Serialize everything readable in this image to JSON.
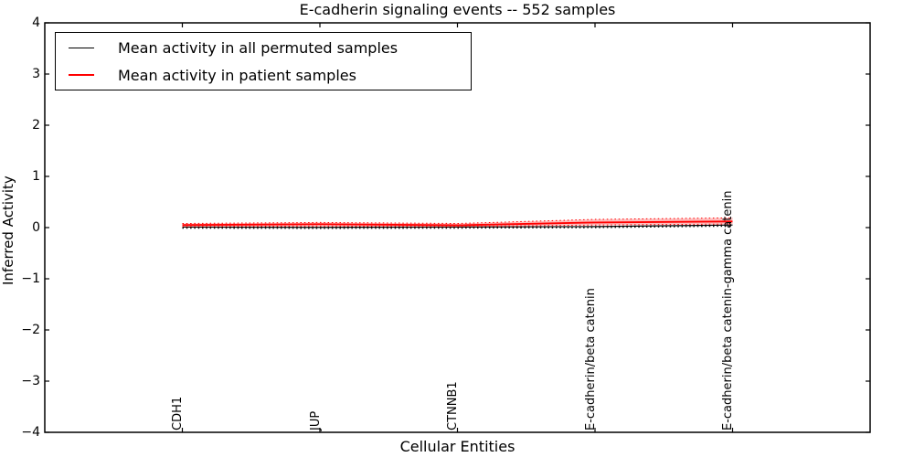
{
  "title": "E-cadherin signaling events -- 552 samples",
  "legend": {
    "items": [
      {
        "label": "Mean activity in all permuted samples",
        "color": "#000000",
        "style": "solid"
      },
      {
        "label": "Mean activity in patient samples",
        "color": "#ff0000",
        "style": "solid"
      }
    ],
    "position": "upper left"
  },
  "axes": {
    "ylabel": "Inferred Activity",
    "xlabel": "Cellular Entities",
    "ytick_labels": [
      "4",
      "3",
      "2",
      "1",
      "0",
      "−1",
      "−2",
      "−3",
      "−4"
    ]
  },
  "chart_data": {
    "type": "line",
    "title": "E-cadherin signaling events -- 552 samples",
    "xlabel": "Cellular Entities",
    "ylabel": "Inferred Activity",
    "ylim": [
      -4,
      4
    ],
    "yticks": [
      4,
      3,
      2,
      1,
      0,
      -1,
      -2,
      -3,
      -4
    ],
    "grid": false,
    "legend_position": "upper left",
    "categories": [
      "CDH1",
      "JUP",
      "CTNNB1",
      "E-cadherin/beta catenin",
      "E-cadherin/beta catenin-gamma catenin"
    ],
    "series": [
      {
        "key": "permuted_mean",
        "name": "Mean activity in all permuted samples",
        "color": "#000000",
        "style": "solid",
        "width": 1.2,
        "values": [
          0.01,
          0.005,
          0.01,
          0.02,
          0.05
        ]
      },
      {
        "key": "permuted_std_dotted",
        "name": "permuted std bound (dotted)",
        "color": "#000000",
        "style": "dotted",
        "width": 1.3,
        "values": [
          -0.01,
          -0.015,
          -0.01,
          0.0,
          0.03
        ]
      },
      {
        "key": "patient_upper_dotted",
        "name": "patient upper std bound (dotted)",
        "color": "#ff0000",
        "style": "dotted",
        "width": 1.0,
        "values": [
          0.08,
          0.1,
          0.08,
          0.16,
          0.19
        ]
      },
      {
        "key": "patient_lower_dotted",
        "name": "patient lower std bound (dotted)",
        "color": "#ff0000",
        "style": "dotted",
        "width": 1.0,
        "values": [
          0.02,
          0.03,
          0.02,
          0.05,
          0.07
        ]
      },
      {
        "key": "patient_mean",
        "name": "Mean activity in patient samples",
        "color": "#ff0000",
        "style": "solid",
        "width": 1.9,
        "values": [
          0.05,
          0.065,
          0.045,
          0.1,
          0.12
        ]
      }
    ],
    "band": {
      "upper": [
        0.08,
        0.1,
        0.08,
        0.16,
        0.19
      ],
      "lower": [
        0.02,
        0.03,
        0.02,
        0.05,
        0.07
      ],
      "color": "#ff0000",
      "opacity": 0.25
    }
  }
}
